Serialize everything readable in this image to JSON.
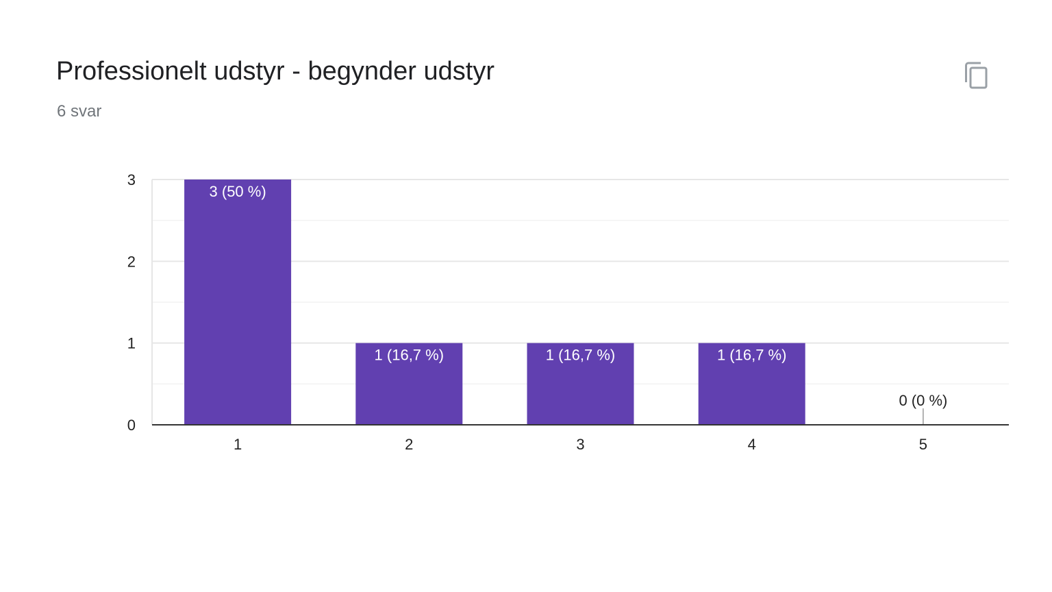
{
  "header": {
    "title": "Professionelt udstyr - begynder udstyr",
    "response_count": "6 svar",
    "copy_icon": "copy-icon"
  },
  "colors": {
    "bar": "#6140b0",
    "grid": "#e6e6e6",
    "grid_minor": "#f2f2f2",
    "axis": "#333333",
    "tick_text": "#222222",
    "bar_label_inside": "#ffffff",
    "bar_label_outside": "#222222"
  },
  "chart_data": {
    "type": "bar",
    "categories": [
      "1",
      "2",
      "3",
      "4",
      "5"
    ],
    "values": [
      3,
      1,
      1,
      1,
      0
    ],
    "data_labels": [
      "3 (50 %)",
      "1 (16,7 %)",
      "1 (16,7 %)",
      "1 (16,7 %)",
      "0 (0 %)"
    ],
    "y_ticks": [
      "0",
      "1",
      "2",
      "3"
    ],
    "ylim": [
      0,
      3
    ],
    "grid": true,
    "legend": "none",
    "title": "",
    "xlabel": "",
    "ylabel": ""
  }
}
